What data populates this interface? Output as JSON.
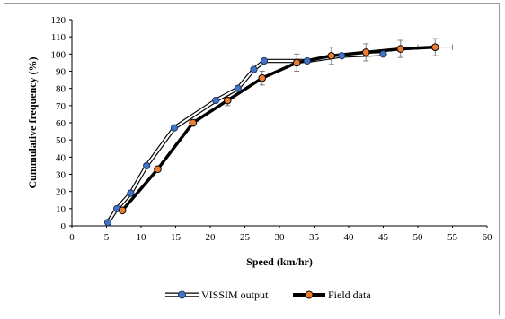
{
  "chart_data": {
    "type": "line",
    "title": "",
    "xlabel": "Speed (km/hr)",
    "ylabel": "Cummulative frequency (%)",
    "xlim": [
      0,
      60
    ],
    "ylim": [
      0,
      120
    ],
    "x_ticks": [
      "0",
      "5",
      "10",
      "15",
      "20",
      "25",
      "30",
      "35",
      "40",
      "45",
      "50",
      "55",
      "60"
    ],
    "y_ticks": [
      "0",
      "10",
      "20",
      "30",
      "40",
      "50",
      "60",
      "70",
      "80",
      "90",
      "100",
      "110",
      "120"
    ],
    "grid": false,
    "legend_position": "bottom",
    "series": [
      {
        "name": "VISSIM output",
        "line_color": "#000000",
        "line_fill": "#ffffff",
        "marker_color": "#4472c4",
        "points": [
          {
            "x": 5.2,
            "y": 2
          },
          {
            "x": 6.5,
            "y": 10
          },
          {
            "x": 8.5,
            "y": 19
          },
          {
            "x": 10.8,
            "y": 35
          },
          {
            "x": 14.8,
            "y": 57
          },
          {
            "x": 20.8,
            "y": 73
          },
          {
            "x": 24.0,
            "y": 80
          },
          {
            "x": 26.3,
            "y": 91
          },
          {
            "x": 27.8,
            "y": 96
          },
          {
            "x": 34.0,
            "y": 96
          },
          {
            "x": 39.0,
            "y": 99
          },
          {
            "x": 45.0,
            "y": 100
          }
        ]
      },
      {
        "name": "Field data",
        "line_color": "#000000",
        "marker_color": "#ed7d31",
        "points": [
          {
            "x": 7.3,
            "y": 9,
            "err": 1
          },
          {
            "x": 12.4,
            "y": 33,
            "err": 1
          },
          {
            "x": 17.5,
            "y": 60,
            "err": 2
          },
          {
            "x": 22.5,
            "y": 73,
            "err": 3
          },
          {
            "x": 27.5,
            "y": 86,
            "err": 4
          },
          {
            "x": 32.5,
            "y": 95,
            "err": 5
          },
          {
            "x": 37.5,
            "y": 99,
            "err": 5
          },
          {
            "x": 42.5,
            "y": 101,
            "err": 5
          },
          {
            "x": 47.5,
            "y": 103,
            "err": 5
          },
          {
            "x": 52.5,
            "y": 104,
            "err": 5,
            "xerr": 2.5
          }
        ]
      }
    ]
  }
}
